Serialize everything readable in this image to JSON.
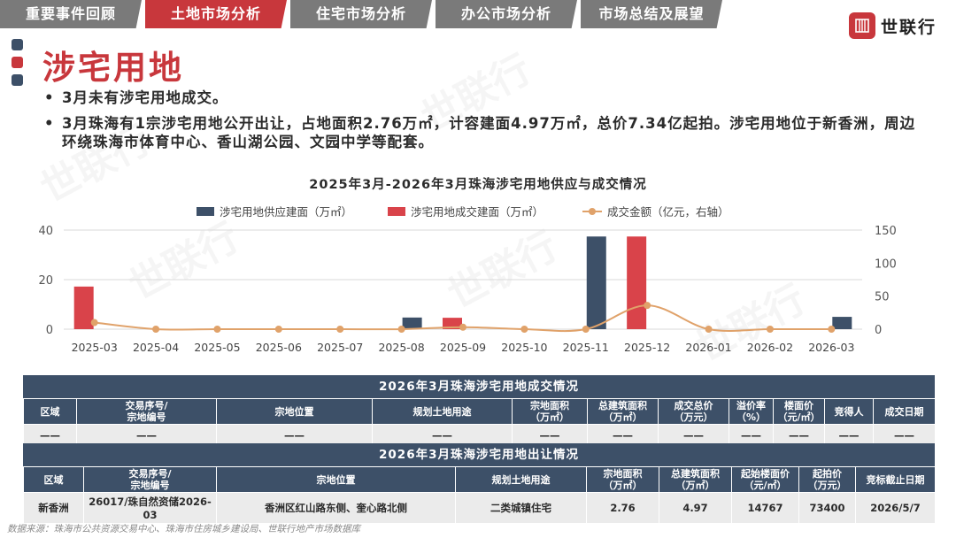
{
  "tabs": [
    {
      "label": "重要事件回顾",
      "active": false
    },
    {
      "label": "土地市场分析",
      "active": true
    },
    {
      "label": "住宅市场分析",
      "active": false
    },
    {
      "label": "办公市场分析",
      "active": false
    },
    {
      "label": "市场总结及展望",
      "active": false
    }
  ],
  "logo": {
    "text": "世联行"
  },
  "page": {
    "title": "涉宅用地"
  },
  "bullets": [
    "3月未有涉宅用地成交。",
    "3月珠海有1宗涉宅用地公开出让，占地面积2.76万㎡，计容建面4.97万㎡，总价7.34亿起拍。涉宅用地位于新香洲，周边环绕珠海市体育中心、香山湖公园、文园中学等配套。"
  ],
  "chart_data": {
    "type": "bar",
    "title": "2025年3月-2026年3月珠海涉宅用地供应与成交情况",
    "categories": [
      "2025-03",
      "2025-04",
      "2025-05",
      "2025-06",
      "2025-07",
      "2025-08",
      "2025-09",
      "2025-10",
      "2025-11",
      "2025-12",
      "2026-01",
      "2026-02",
      "2026-03"
    ],
    "series": [
      {
        "name": "涉宅用地供应建面（万㎡）",
        "kind": "bar",
        "axis": "left",
        "color": "#3d5068",
        "values": [
          0,
          0,
          0,
          0,
          0,
          4.7,
          0,
          0,
          37.4,
          0,
          0,
          0,
          4.97
        ]
      },
      {
        "name": "涉宅用地成交建面（万㎡）",
        "kind": "bar",
        "axis": "left",
        "color": "#d9434a",
        "values": [
          17.2,
          0,
          0,
          0,
          0,
          0,
          4.6,
          0,
          0,
          37.4,
          0,
          0,
          0
        ]
      },
      {
        "name": "成交金额（亿元，右轴）",
        "kind": "line",
        "axis": "right",
        "color": "#e0a26a",
        "values": [
          10,
          0,
          0,
          0,
          0,
          0,
          3,
          0,
          0,
          36,
          0,
          0,
          0
        ]
      }
    ],
    "y_left": {
      "ticks": [
        0,
        20,
        40
      ],
      "lim": [
        0,
        40
      ]
    },
    "y_right": {
      "ticks": [
        0,
        50,
        100,
        150
      ],
      "lim": [
        0,
        150
      ]
    },
    "grid": true,
    "legend_position": "top"
  },
  "deal_table": {
    "caption": "2026年3月珠海涉宅用地成交情况",
    "headers": [
      "区域",
      "交易序号/\n宗地编号",
      "宗地位置",
      "规划土地用途",
      "宗地面积\n（万㎡）",
      "总建筑面积\n（万㎡）",
      "成交总价\n（万元）",
      "溢价率\n（%）",
      "楼面价\n（元/㎡）",
      "竞得人",
      "成交日期"
    ],
    "rows": [
      [
        "——",
        "——",
        "——",
        "——",
        "——",
        "——",
        "——",
        "——",
        "——",
        "——",
        "——"
      ]
    ]
  },
  "supply_table": {
    "caption": "2026年3月珠海涉宅用地出让情况",
    "headers": [
      "区域",
      "交易序号/\n宗地编号",
      "宗地位置",
      "规划土地用途",
      "宗地面积\n（万㎡）",
      "总建筑面积\n（万㎡）",
      "起始楼面价\n（元/㎡）",
      "起拍价\n（万元）",
      "竞标截止日期"
    ],
    "rows": [
      [
        "新香洲",
        "26017/珠自然资储2026-03",
        "香洲区红山路东侧、奎心路北侧",
        "二类城镇住宅",
        "2.76",
        "4.97",
        "14767",
        "73400",
        "2026/5/7"
      ]
    ]
  },
  "source": "数据来源：珠海市公共资源交易中心、珠海市住房城乡建设局、世联行地产市场数据库",
  "watermark_text": "世联行",
  "colors": {
    "accent_red": "#c8373c",
    "navy": "#3d5068",
    "tab_gray": "#7a7a7a"
  }
}
